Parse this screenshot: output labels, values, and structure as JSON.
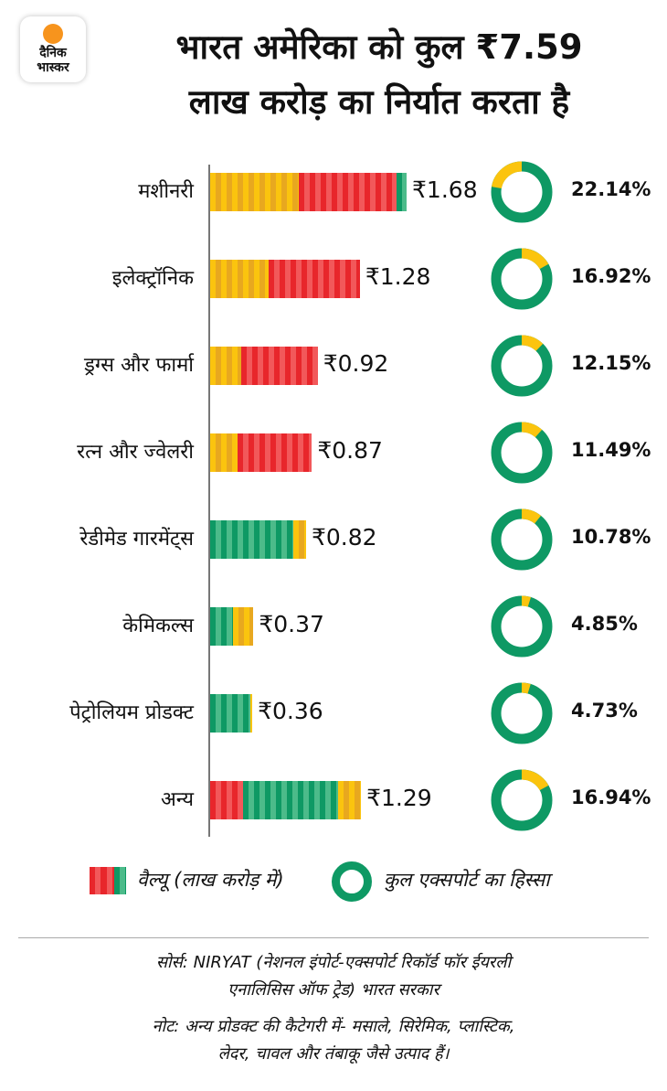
{
  "logo": {
    "line1": "दैनिक",
    "line2": "भास्कर"
  },
  "colors": {
    "orange": "#fbc40e",
    "red": "#e8262b",
    "green": "#0e9964",
    "donut_ring": "#0e9964",
    "donut_share": "#fbc40e"
  },
  "chart_data": {
    "type": "bar",
    "title_line1": "भारत अमेरिका को कुल ₹7.59",
    "title_line2": "लाख करोड़ का निर्यात करता है",
    "total": 7.59,
    "unit": "लाख करोड़",
    "categories": [
      "मशीनरी",
      "इलेक्ट्रॉनिक",
      "ड्रग्स और फार्मा",
      "रत्न और ज्वेलरी",
      "रेडीमेड गारमेंट्स",
      "केमिकल्स",
      "पेट्रोलियम प्रोडक्ट",
      "अन्य"
    ],
    "values": [
      1.68,
      1.28,
      0.92,
      0.87,
      0.82,
      0.37,
      0.36,
      1.29
    ],
    "value_labels": [
      "₹1.68",
      "₹1.28",
      "₹0.92",
      "₹0.87",
      "₹0.82",
      "₹0.37",
      "₹0.36",
      "₹1.29"
    ],
    "share_percent": [
      22.14,
      16.92,
      12.15,
      11.49,
      10.78,
      4.85,
      4.73,
      16.94
    ],
    "share_labels": [
      "22.14%",
      "16.92%",
      "12.15%",
      "11.49%",
      "10.78%",
      "4.85%",
      "4.73%",
      "16.94%"
    ],
    "bar_color_segments": [
      [
        [
          "orange",
          0.45
        ],
        [
          "red",
          0.5
        ],
        [
          "green",
          0.05
        ]
      ],
      [
        [
          "orange",
          0.39
        ],
        [
          "red",
          0.61
        ]
      ],
      [
        [
          "orange",
          0.29
        ],
        [
          "red",
          0.71
        ]
      ],
      [
        [
          "orange",
          0.27
        ],
        [
          "red",
          0.73
        ]
      ],
      [
        [
          "green",
          0.87
        ],
        [
          "orange",
          0.13
        ]
      ],
      [
        [
          "green",
          0.52
        ],
        [
          "orange",
          0.48
        ]
      ],
      [
        [
          "green",
          0.96
        ],
        [
          "orange",
          0.04
        ]
      ],
      [
        [
          "red",
          0.22
        ],
        [
          "green",
          0.63
        ],
        [
          "orange",
          0.15
        ]
      ]
    ],
    "xlim": [
      0,
      1.75
    ],
    "legend": {
      "bars": "वैल्यू (लाख करोड़ में)",
      "donut": "कुल एक्सपोर्ट का हिस्सा",
      "placement": "bottom"
    }
  },
  "footer": {
    "source_line1": "सोर्स: NIRYAT (नेशनल इंपोर्ट-एक्सपोर्ट रिकॉर्ड फॉर ईयरली",
    "source_line2": "एनालिसिस ऑफ ट्रेड) भारत सरकार",
    "note_line1": "नोट: अन्य प्रोडक्ट की कैटेगरी में- मसाले, सिरेमिक, प्लास्टिक,",
    "note_line2": "लेदर, चावल और तंबाकू जैसे उत्पाद हैं।"
  }
}
